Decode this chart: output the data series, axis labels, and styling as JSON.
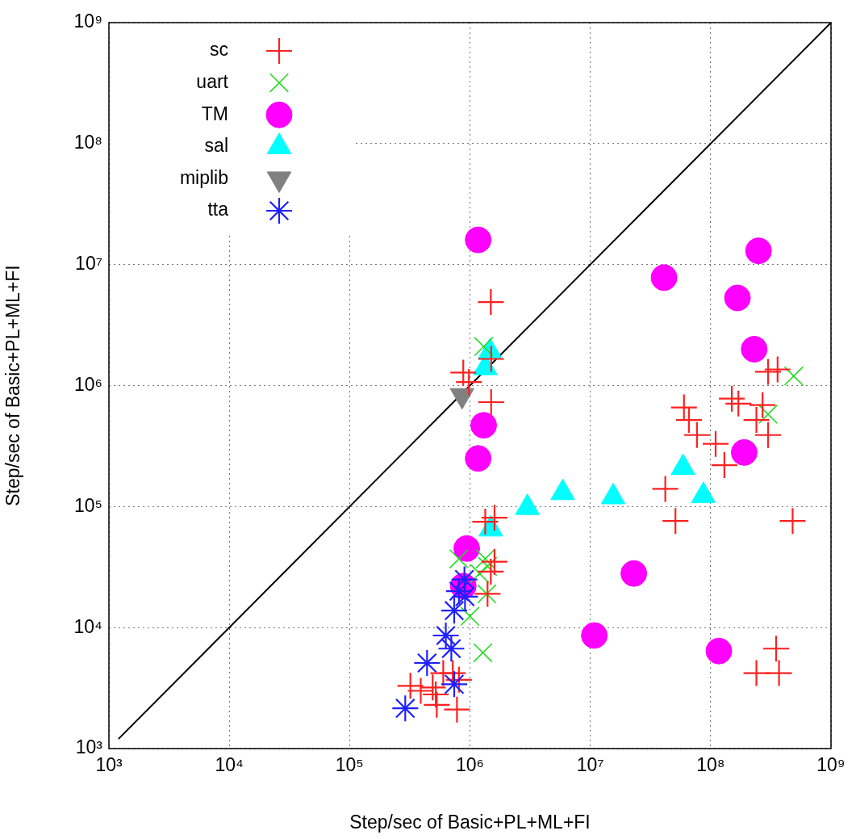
{
  "chart_data": {
    "type": "scatter",
    "xlabel": "Step/sec of Basic+PL+ML+FI",
    "ylabel": "Step/sec of Basic+PL+ML+FI",
    "log": "xy",
    "grid": true,
    "legend": "top left",
    "xlim": [
      1000,
      1000000000
    ],
    "ylim": [
      1000,
      1000000000
    ],
    "xticks": [
      {
        "value": 1000,
        "label": "10³"
      },
      {
        "value": 10000,
        "label": "10⁴"
      },
      {
        "value": 100000,
        "label": "10⁵"
      },
      {
        "value": 1000000,
        "label": "10⁶"
      },
      {
        "value": 10000000,
        "label": "10⁷"
      },
      {
        "value": 100000000,
        "label": "10⁸"
      },
      {
        "value": 1000000000,
        "label": "10⁹"
      }
    ],
    "yticks": [
      {
        "value": 1000,
        "label": "10³"
      },
      {
        "value": 10000,
        "label": "10⁴"
      },
      {
        "value": 100000,
        "label": "10⁵"
      },
      {
        "value": 1000000,
        "label": "10⁶"
      },
      {
        "value": 10000000,
        "label": "10⁷"
      },
      {
        "value": 100000000,
        "label": "10⁸"
      },
      {
        "value": 1000000000,
        "label": "10⁹"
      }
    ],
    "series": [
      {
        "name": "sc",
        "color": "#ff2020",
        "marker": "cross",
        "x": [
          1490000,
          1500000,
          880000,
          980000,
          1500000,
          360000000.0,
          300000000,
          150000000,
          170000000,
          270000000,
          240000000,
          300000000,
          60000000,
          66000000,
          77000000,
          110000000,
          130000000,
          42000000,
          51000000,
          480000000,
          350000000,
          240000000,
          370000000,
          1340000,
          1600000,
          1490000,
          1400000,
          1600000,
          320000,
          490000,
          520000,
          720000,
          810000,
          780000,
          530000,
          390000,
          600000
        ],
        "values": [
          4900000,
          730000,
          1280000,
          1070000,
          1660000,
          1360000,
          1300000,
          780000,
          710000,
          690000,
          520000,
          390000,
          660000,
          520000,
          390000,
          330000,
          220000,
          140000,
          76000,
          76000,
          6700,
          4200,
          4200,
          75000,
          81000,
          29000,
          19000,
          35000,
          3300,
          3200,
          2800,
          4200,
          3700,
          2100,
          2300,
          3000,
          4200
        ]
      },
      {
        "name": "uart",
        "color": "#22dd22",
        "marker": "x",
        "x": [
          490000000,
          300000000,
          1300000,
          1280000,
          1000000,
          810000,
          1340000,
          1400000,
          1380000,
          1200000
        ],
        "values": [
          1200000,
          580000,
          2100000,
          6200,
          12400,
          37000,
          37000,
          32000,
          19000,
          28000
        ]
      },
      {
        "name": "TM",
        "color": "#ff00ff",
        "marker": "circle",
        "x": [
          1170000,
          250000000,
          41000000,
          167000000,
          230000000,
          1300000,
          1170000,
          190000000,
          940000,
          880000,
          23000000,
          10800000,
          117000000
        ],
        "values": [
          16000000,
          13000000,
          7800000,
          5300000,
          2000000,
          470000,
          250000,
          280000,
          45000,
          22000,
          28000,
          8600,
          6400
        ]
      },
      {
        "name": "sal",
        "color": "#00ffff",
        "marker": "triangle",
        "x": [
          1470000,
          1340000,
          3000000,
          5900000,
          15500000,
          59000000,
          87000000,
          1490000
        ],
        "values": [
          1900000,
          1400000,
          98000,
          130000,
          120000,
          210000,
          123000,
          65000
        ]
      },
      {
        "name": "miplib",
        "color": "#808080",
        "marker": "triangle-down",
        "x": [
          860000
        ],
        "values": [
          830000
        ]
      },
      {
        "name": "tta",
        "color": "#2020ff",
        "marker": "star",
        "x": [
          290000,
          440000,
          740000,
          630000,
          700000,
          740000,
          900000,
          910000,
          810000
        ],
        "values": [
          2150,
          5100,
          3400,
          8600,
          6700,
          13800,
          25000,
          18000,
          20000
        ]
      },
      {
        "type": "line",
        "color": "#000000",
        "x": [
          1200,
          1000000000
        ],
        "values": [
          1200,
          1000000000
        ]
      }
    ]
  }
}
